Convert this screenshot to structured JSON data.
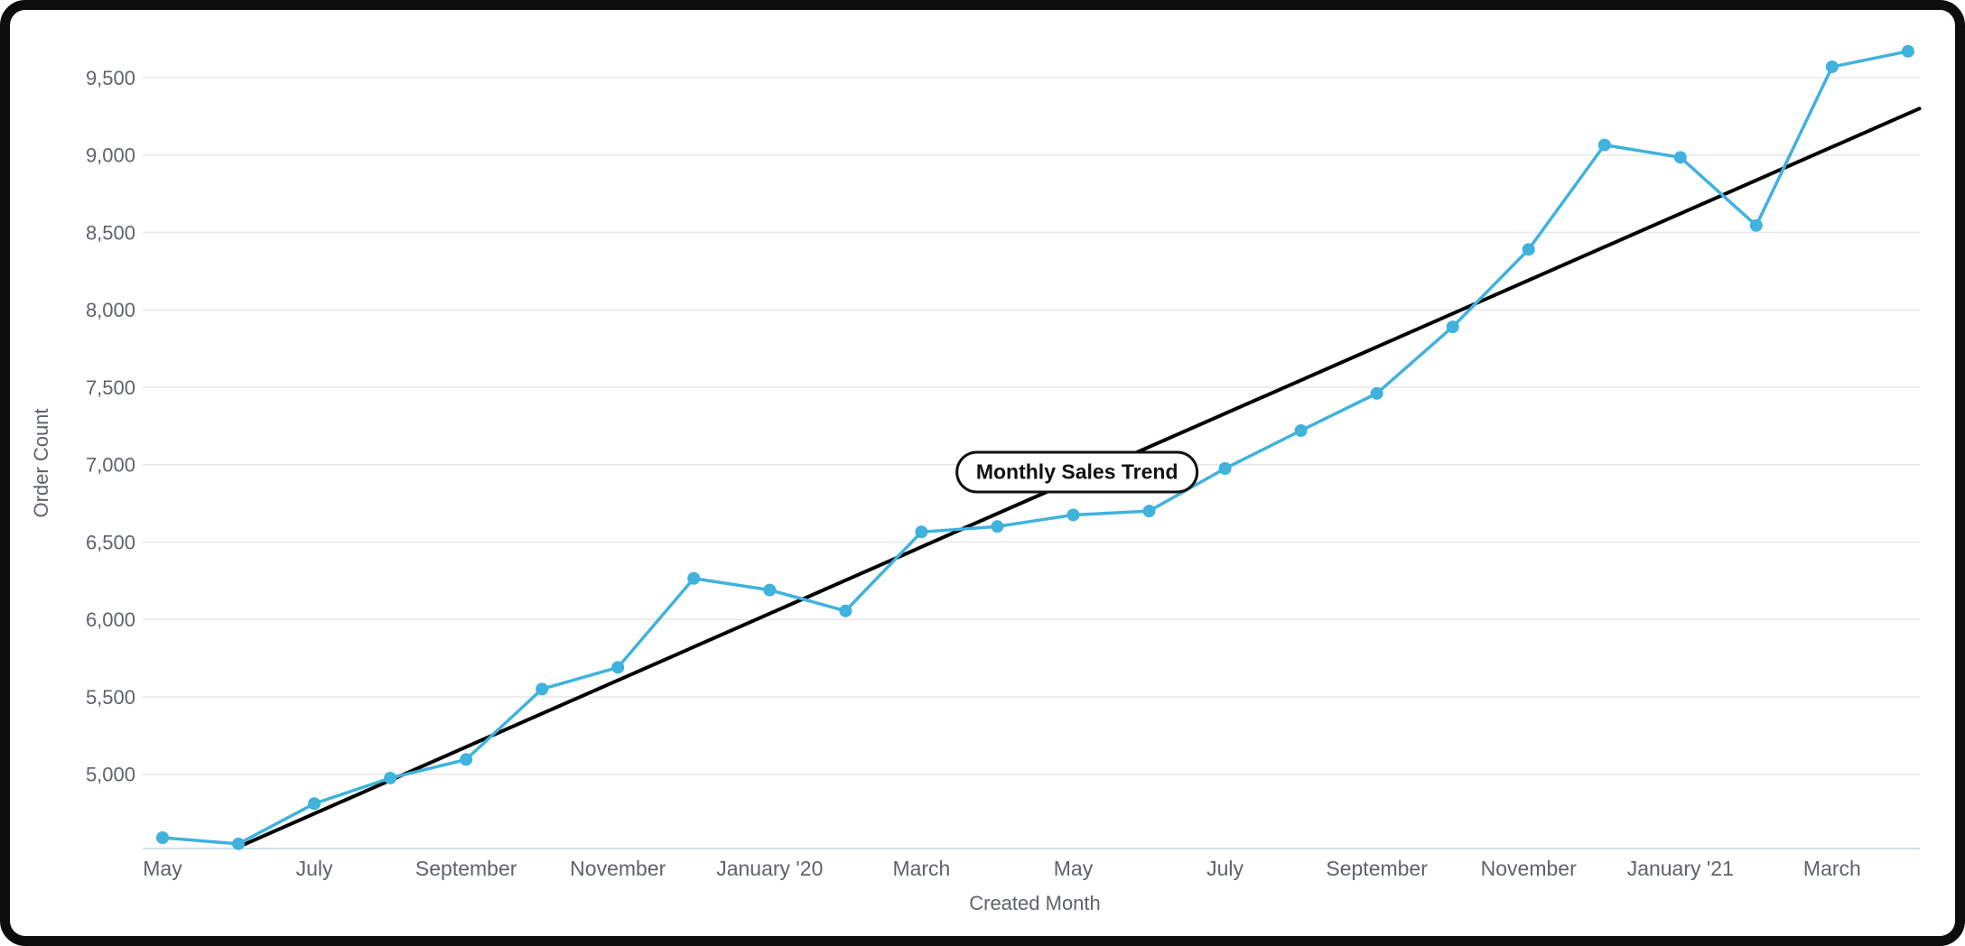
{
  "frame": {
    "background": "#ffffff",
    "border_color": "#0d0d0d"
  },
  "chart_data": {
    "type": "line",
    "xlabel": "Created Month",
    "ylabel": "Order Count",
    "grid": true,
    "legend_position": "none",
    "ylim": [
      4520,
      9760
    ],
    "y_ticks": [
      {
        "value": 5000,
        "label": "5,000"
      },
      {
        "value": 5500,
        "label": "5,500"
      },
      {
        "value": 6000,
        "label": "6,000"
      },
      {
        "value": 6500,
        "label": "6,500"
      },
      {
        "value": 7000,
        "label": "7,000"
      },
      {
        "value": 7500,
        "label": "7,500"
      },
      {
        "value": 8000,
        "label": "8,000"
      },
      {
        "value": 8500,
        "label": "8,500"
      },
      {
        "value": 9000,
        "label": "9,000"
      },
      {
        "value": 9500,
        "label": "9,500"
      }
    ],
    "x_tick_labels": [
      "May",
      "July",
      "September",
      "November",
      "January '20",
      "March",
      "May",
      "July",
      "September",
      "November",
      "January '21",
      "March"
    ],
    "x_tick_indices": [
      0,
      2,
      4,
      6,
      8,
      10,
      12,
      14,
      16,
      18,
      20,
      22
    ],
    "series": [
      {
        "name": "Order Count",
        "color": "#3fb2dd",
        "values": [
          4590,
          4550,
          4810,
          4975,
          5095,
          5550,
          5690,
          6265,
          6190,
          6055,
          6565,
          6600,
          6675,
          6700,
          6975,
          7220,
          7460,
          7890,
          8390,
          9065,
          8985,
          8545,
          9570,
          9670
        ]
      }
    ],
    "trend": {
      "color": "#000000",
      "start_index": 1,
      "start_value": 4530,
      "end_index": 23.15,
      "end_value": 9300
    },
    "annotation": {
      "label": "Monthly Sales Trend",
      "center_index": 12.05,
      "center_value": 6950
    },
    "colors": {
      "grid": "#e7e7e7",
      "tick_label": "#5f6368",
      "axis_line": "#cfe2ee"
    }
  }
}
